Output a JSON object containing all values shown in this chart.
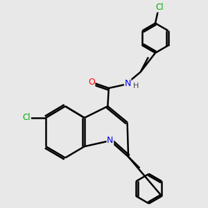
{
  "background_color": "#e8e8e8",
  "bond_color": "#000000",
  "bond_width": 1.8,
  "atom_colors": {
    "N": "#0000ee",
    "O": "#ff0000",
    "Cl": "#00aa00",
    "C": "#000000",
    "H": "#333333"
  },
  "figsize": [
    3.0,
    3.0
  ],
  "dpi": 100
}
